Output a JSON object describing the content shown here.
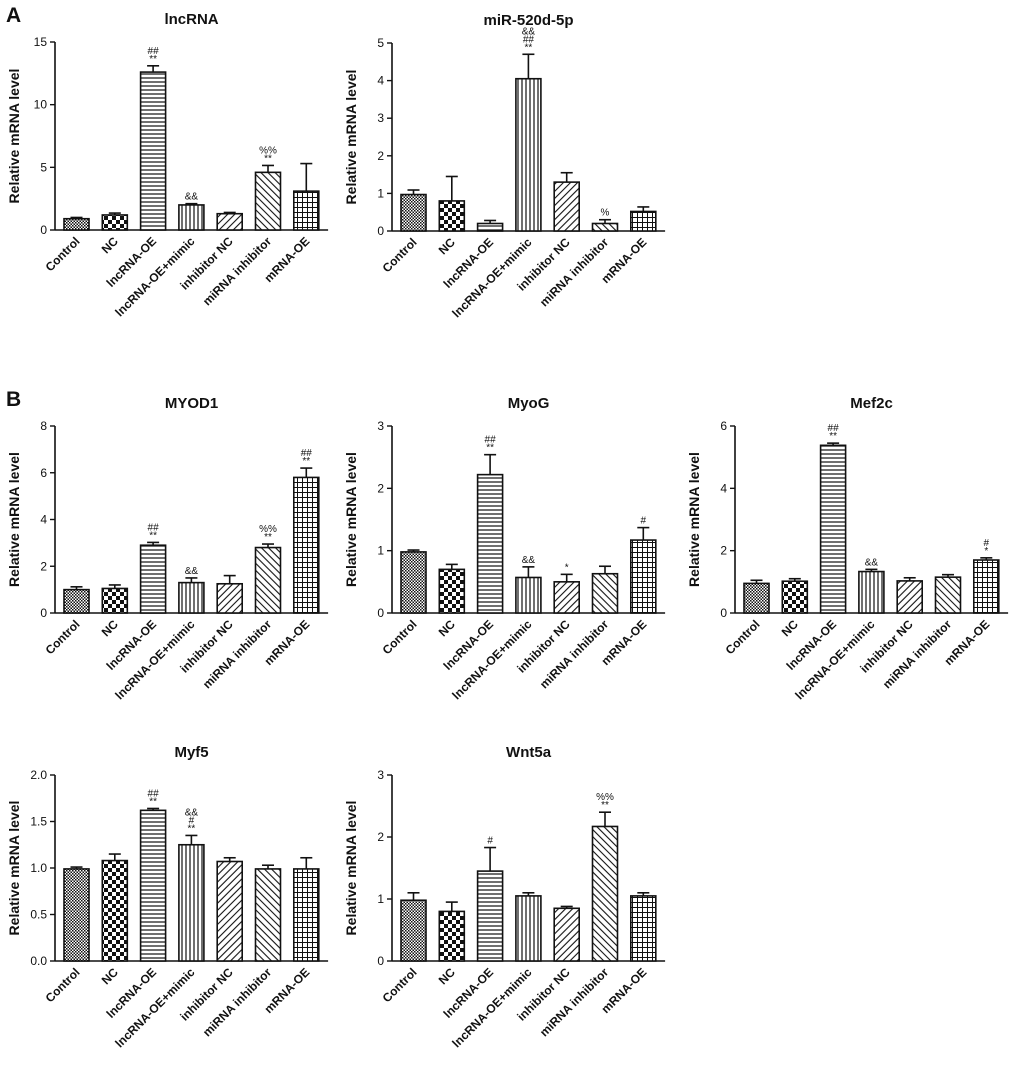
{
  "panels": {
    "A": "A",
    "B": "B"
  },
  "chart_data": [
    {
      "type": "bar",
      "panel": "A",
      "title": "lncRNA",
      "ylabel": "Relative mRNA level",
      "xlabel": "",
      "ylim": [
        0,
        15
      ],
      "yticks": [
        "0",
        "5",
        "10",
        "15"
      ],
      "ytick_values": [
        0,
        5,
        10,
        15
      ],
      "categories": [
        "Control",
        "NC",
        "lncRNA-OE",
        "lncRNA-OE+mimic",
        "inhibitor NC",
        "miRNA inhibitor",
        "mRNA-OE"
      ],
      "values": [
        0.9,
        1.2,
        12.6,
        2.0,
        1.3,
        4.6,
        3.1
      ],
      "errors": [
        0.1,
        0.15,
        0.5,
        0.1,
        0.1,
        0.55,
        2.2
      ],
      "annotations": [
        [],
        [],
        [
          "##",
          "**"
        ],
        [
          "&&"
        ],
        [],
        [
          "%%",
          "**"
        ],
        []
      ]
    },
    {
      "type": "bar",
      "panel": "A",
      "title": "miR-520d-5p",
      "ylabel": "Relative mRNA level",
      "xlabel": "",
      "ylim": [
        0,
        5
      ],
      "yticks": [
        "0",
        "1",
        "2",
        "3",
        "4",
        "5"
      ],
      "ytick_values": [
        0,
        1,
        2,
        3,
        4,
        5
      ],
      "categories": [
        "Control",
        "NC",
        "lncRNA-OE",
        "lncRNA-OE+mimic",
        "inhibitor NC",
        "miRNA inhibitor",
        "mRNA-OE"
      ],
      "values": [
        0.97,
        0.8,
        0.2,
        4.05,
        1.3,
        0.2,
        0.52
      ],
      "errors": [
        0.12,
        0.65,
        0.08,
        0.65,
        0.25,
        0.1,
        0.12
      ],
      "annotations": [
        [],
        [],
        [],
        [
          "&&",
          "##",
          "**"
        ],
        [],
        [
          "%"
        ],
        []
      ]
    },
    {
      "type": "bar",
      "panel": "B",
      "title": "MYOD1",
      "ylabel": "Relative mRNA level",
      "xlabel": "",
      "ylim": [
        0,
        8
      ],
      "yticks": [
        "0",
        "2",
        "4",
        "6",
        "8"
      ],
      "ytick_values": [
        0,
        2,
        4,
        6,
        8
      ],
      "categories": [
        "Control",
        "NC",
        "lncRNA-OE",
        "lncRNA-OE+mimic",
        "inhibitor NC",
        "miRNA inhibitor",
        "mRNA-OE"
      ],
      "values": [
        1.0,
        1.05,
        2.9,
        1.3,
        1.25,
        2.8,
        5.8
      ],
      "errors": [
        0.12,
        0.15,
        0.12,
        0.2,
        0.35,
        0.15,
        0.4
      ],
      "annotations": [
        [],
        [],
        [
          "##",
          "**"
        ],
        [
          "&&"
        ],
        [],
        [
          "%%",
          "**"
        ],
        [
          "##",
          "**"
        ]
      ]
    },
    {
      "type": "bar",
      "panel": "B",
      "title": "MyoG",
      "ylabel": "Relative mRNA level",
      "xlabel": "",
      "ylim": [
        0,
        3
      ],
      "yticks": [
        "0",
        "1",
        "2",
        "3"
      ],
      "ytick_values": [
        0,
        1,
        2,
        3
      ],
      "categories": [
        "Control",
        "NC",
        "lncRNA-OE",
        "lncRNA-OE+mimic",
        "inhibitor NC",
        "miRNA inhibitor",
        "mRNA-OE"
      ],
      "values": [
        0.98,
        0.7,
        2.22,
        0.57,
        0.5,
        0.63,
        1.17
      ],
      "errors": [
        0.03,
        0.08,
        0.32,
        0.17,
        0.12,
        0.12,
        0.2
      ],
      "annotations": [
        [],
        [],
        [
          "##",
          "**"
        ],
        [
          "&&"
        ],
        [
          "*"
        ],
        [],
        [
          "#"
        ]
      ]
    },
    {
      "type": "bar",
      "panel": "B",
      "title": "Mef2c",
      "ylabel": "Relative mRNA level",
      "xlabel": "",
      "ylim": [
        0,
        6
      ],
      "yticks": [
        "0",
        "2",
        "4",
        "6"
      ],
      "ytick_values": [
        0,
        2,
        4,
        6
      ],
      "categories": [
        "Control",
        "NC",
        "lncRNA-OE",
        "lncRNA-OE+mimic",
        "inhibitor NC",
        "miRNA inhibitor",
        "mRNA-OE"
      ],
      "values": [
        0.95,
        1.02,
        5.38,
        1.33,
        1.03,
        1.15,
        1.7
      ],
      "errors": [
        0.1,
        0.08,
        0.07,
        0.07,
        0.1,
        0.08,
        0.07
      ],
      "annotations": [
        [],
        [],
        [
          "##",
          "**"
        ],
        [
          "&&"
        ],
        [],
        [],
        [
          "#",
          "*"
        ]
      ]
    },
    {
      "type": "bar",
      "panel": "B",
      "title": "Myf5",
      "ylabel": "Relative mRNA level",
      "xlabel": "",
      "ylim": [
        0,
        2
      ],
      "yticks": [
        "0.0",
        "0.5",
        "1.0",
        "1.5",
        "2.0"
      ],
      "ytick_values": [
        0,
        0.5,
        1,
        1.5,
        2
      ],
      "categories": [
        "Control",
        "NC",
        "lncRNA-OE",
        "lncRNA-OE+mimic",
        "inhibitor NC",
        "miRNA inhibitor",
        "mRNA-OE"
      ],
      "values": [
        0.99,
        1.08,
        1.62,
        1.25,
        1.07,
        0.99,
        0.99
      ],
      "errors": [
        0.02,
        0.07,
        0.02,
        0.1,
        0.04,
        0.04,
        0.12
      ],
      "annotations": [
        [],
        [],
        [
          "##",
          "**"
        ],
        [
          "&&",
          "#",
          "**"
        ],
        [],
        [],
        []
      ]
    },
    {
      "type": "bar",
      "panel": "B",
      "title": "Wnt5a",
      "ylabel": "Relative mRNA level",
      "xlabel": "",
      "ylim": [
        0,
        3
      ],
      "yticks": [
        "0",
        "1",
        "2",
        "3"
      ],
      "ytick_values": [
        0,
        1,
        2,
        3
      ],
      "categories": [
        "Control",
        "NC",
        "lncRNA-OE",
        "lncRNA-OE+mimic",
        "inhibitor NC",
        "miRNA inhibitor",
        "mRNA-OE"
      ],
      "values": [
        0.98,
        0.8,
        1.45,
        1.05,
        0.85,
        2.17,
        1.05
      ],
      "errors": [
        0.12,
        0.15,
        0.38,
        0.05,
        0.03,
        0.23,
        0.05
      ],
      "annotations": [
        [],
        [],
        [
          "#"
        ],
        [],
        [],
        [
          "%%",
          "**"
        ],
        []
      ]
    }
  ]
}
